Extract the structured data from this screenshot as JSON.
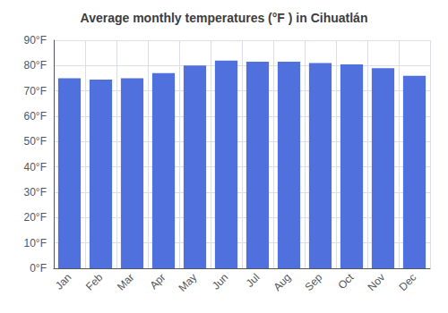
{
  "chart_data": {
    "type": "bar",
    "title": "Average monthly temperatures (°F ) in Cihuatlán",
    "categories": [
      "Jan",
      "Feb",
      "Mar",
      "Apr",
      "May",
      "Jun",
      "Jul",
      "Aug",
      "Sep",
      "Oct",
      "Nov",
      "Dec"
    ],
    "values": [
      75,
      74.5,
      75,
      77,
      80,
      82,
      81.5,
      81.5,
      81,
      80.5,
      79,
      76
    ],
    "ylim": [
      0,
      90
    ],
    "yticks": [
      {
        "value": 0,
        "label": "0°F"
      },
      {
        "value": 10,
        "label": "10°F"
      },
      {
        "value": 20,
        "label": "20°F"
      },
      {
        "value": 30,
        "label": "30°F"
      },
      {
        "value": 40,
        "label": "40°F"
      },
      {
        "value": 50,
        "label": "50°F"
      },
      {
        "value": 60,
        "label": "60°F"
      },
      {
        "value": 70,
        "label": "70°F"
      },
      {
        "value": 80,
        "label": "80°F"
      },
      {
        "value": 90,
        "label": "90°F"
      }
    ],
    "grid": true
  }
}
